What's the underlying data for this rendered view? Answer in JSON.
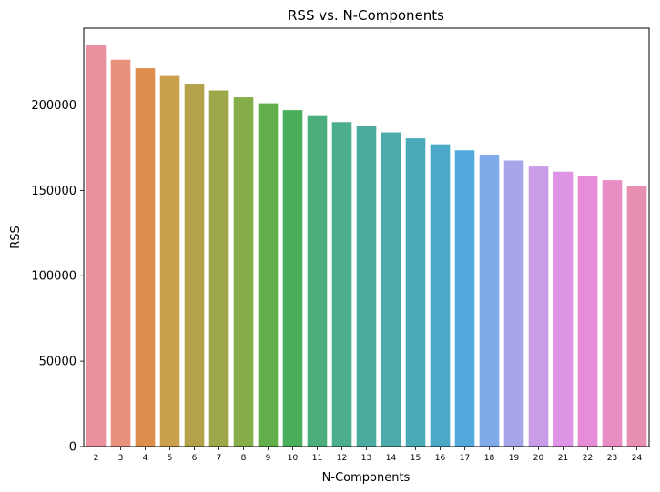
{
  "chart_data": {
    "type": "bar",
    "title": "RSS vs. N-Components",
    "xlabel": "N-Components",
    "ylabel": "RSS",
    "categories": [
      "2",
      "3",
      "4",
      "5",
      "6",
      "7",
      "8",
      "9",
      "10",
      "11",
      "12",
      "13",
      "14",
      "15",
      "16",
      "17",
      "18",
      "19",
      "20",
      "21",
      "22",
      "23",
      "24"
    ],
    "values": [
      235000,
      226500,
      221500,
      217000,
      212500,
      208500,
      204500,
      201000,
      197000,
      193500,
      190000,
      187500,
      184000,
      180500,
      177000,
      173500,
      171000,
      167500,
      164000,
      161000,
      158500,
      156000,
      152500
    ],
    "ylim": [
      0,
      245000
    ],
    "yticks": [
      0,
      50000,
      100000,
      150000,
      200000
    ],
    "ytick_labels": [
      "0",
      "50000",
      "100000",
      "150000",
      "200000"
    ],
    "colors": [
      "#e8909e",
      "#e8917f",
      "#dd8e4d",
      "#caa04c",
      "#b3a24a",
      "#9ea84a",
      "#85ad4a",
      "#62ae4a",
      "#4bae5b",
      "#4bae7c",
      "#4cad8f",
      "#4bab9f",
      "#4babaa",
      "#4aaab8",
      "#4aa9c6",
      "#52a9dc",
      "#80aae8",
      "#a7a5ea",
      "#c99ce8",
      "#df95e6",
      "#e78dd8",
      "#e98ec5",
      "#e78fb1"
    ],
    "grid": false,
    "legend": "none"
  }
}
